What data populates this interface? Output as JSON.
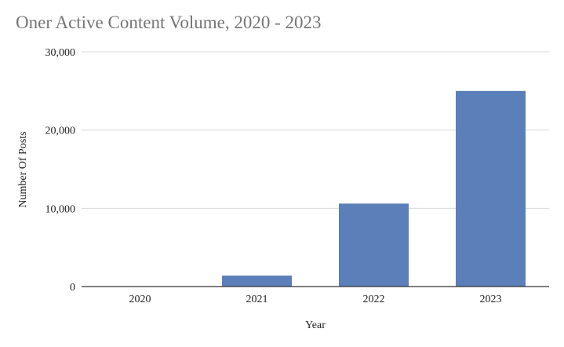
{
  "chart_data": {
    "type": "bar",
    "title": "Oner Active Content Volume, 2020 - 2023",
    "xlabel": "Year",
    "ylabel": "Number Of Posts",
    "categories": [
      "2020",
      "2021",
      "2022",
      "2023"
    ],
    "values": [
      0,
      1400,
      10600,
      25000
    ],
    "ylim": [
      0,
      30000
    ],
    "yticks": [
      0,
      10000,
      20000,
      30000
    ],
    "ytick_labels": [
      "0",
      "10,000",
      "20,000",
      "30,000"
    ],
    "grid": true,
    "legend": "none",
    "colors": {
      "bar": "#5b7fb9",
      "grid": "#d9d9d9",
      "axis": "#333333",
      "title": "#757575",
      "text": "#222222"
    }
  }
}
